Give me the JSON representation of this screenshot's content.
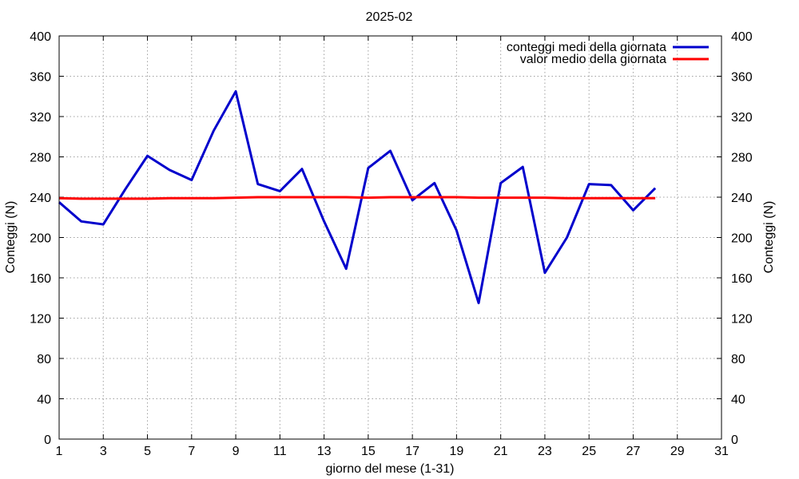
{
  "chart_data": {
    "type": "line",
    "title": "2025-02",
    "xlabel": "giorno del mese (1-31)",
    "ylabel": "Conteggi (N)",
    "y2label": "Conteggi (N)",
    "xlim": [
      1,
      31
    ],
    "ylim": [
      0,
      400
    ],
    "xticks": [
      1,
      3,
      5,
      7,
      9,
      11,
      13,
      15,
      17,
      19,
      21,
      23,
      25,
      27,
      29,
      31
    ],
    "yticks": [
      0,
      40,
      80,
      120,
      160,
      200,
      240,
      280,
      320,
      360,
      400
    ],
    "grid": true,
    "legend_position": "top-right",
    "x": [
      1,
      2,
      3,
      4,
      5,
      6,
      7,
      8,
      9,
      10,
      11,
      12,
      13,
      14,
      15,
      16,
      17,
      18,
      19,
      20,
      21,
      22,
      23,
      24,
      25,
      26,
      27,
      28
    ],
    "series": [
      {
        "name": "conteggi medi della giornata",
        "color": "#0000cc",
        "values": [
          235,
          216,
          213,
          248,
          281,
          267,
          257,
          306,
          345,
          253,
          246,
          268,
          216,
          169,
          269,
          286,
          237,
          254,
          207,
          135,
          254,
          270,
          165,
          200,
          253,
          252,
          227,
          249
        ]
      },
      {
        "name": "valor medio della giornata",
        "color": "#ff0000",
        "values": [
          239,
          238.5,
          238.5,
          238.5,
          238.5,
          239,
          239,
          239,
          239.5,
          240,
          240,
          240,
          240,
          240,
          239.5,
          240,
          240,
          240,
          240,
          239.5,
          239.5,
          239.5,
          239.5,
          239,
          239,
          239,
          239,
          239
        ]
      }
    ]
  }
}
